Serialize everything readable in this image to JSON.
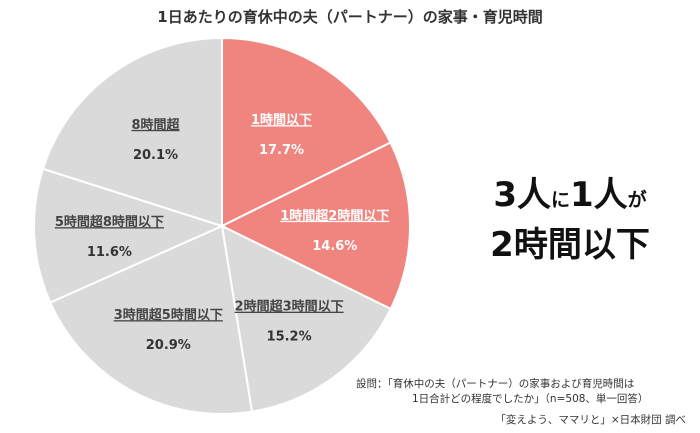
{
  "title": "1日あたりの育休中の夫（パートナー）の家事・育児時間",
  "colors": {
    "highlight": "#f0857f",
    "normal": "#dadada",
    "separator": "#ffffff"
  },
  "chart_data": {
    "type": "pie",
    "start": "12 o'clock",
    "direction": "clockwise",
    "slices": [
      {
        "label": "1時間以下",
        "value": 17.7,
        "value_label": "17.7%",
        "highlight": true
      },
      {
        "label": "1時間超2時間以下",
        "value": 14.6,
        "value_label": "14.6%",
        "highlight": true
      },
      {
        "label": "2時間超3時間以下",
        "value": 15.2,
        "value_label": "15.2%",
        "highlight": false
      },
      {
        "label": "3時間超5時間以下",
        "value": 20.9,
        "value_label": "20.9%",
        "highlight": false
      },
      {
        "label": "5時間超8時間以下",
        "value": 11.6,
        "value_label": "11.6%",
        "highlight": false
      },
      {
        "label": "8時間超",
        "value": 20.1,
        "value_label": "20.1%",
        "highlight": false
      }
    ]
  },
  "headline": {
    "part1": "3人",
    "part2": "に",
    "part3": "1人",
    "part4": "が",
    "line2": "2時間以下"
  },
  "note": {
    "line1": "設問：「育休中の夫（パートナー）の家事および育児時間は",
    "line2": "1日合計どの程度でしたか」（n=508、単一回答）"
  },
  "source": "「変えよう、ママリと」×日本財団 調べ"
}
